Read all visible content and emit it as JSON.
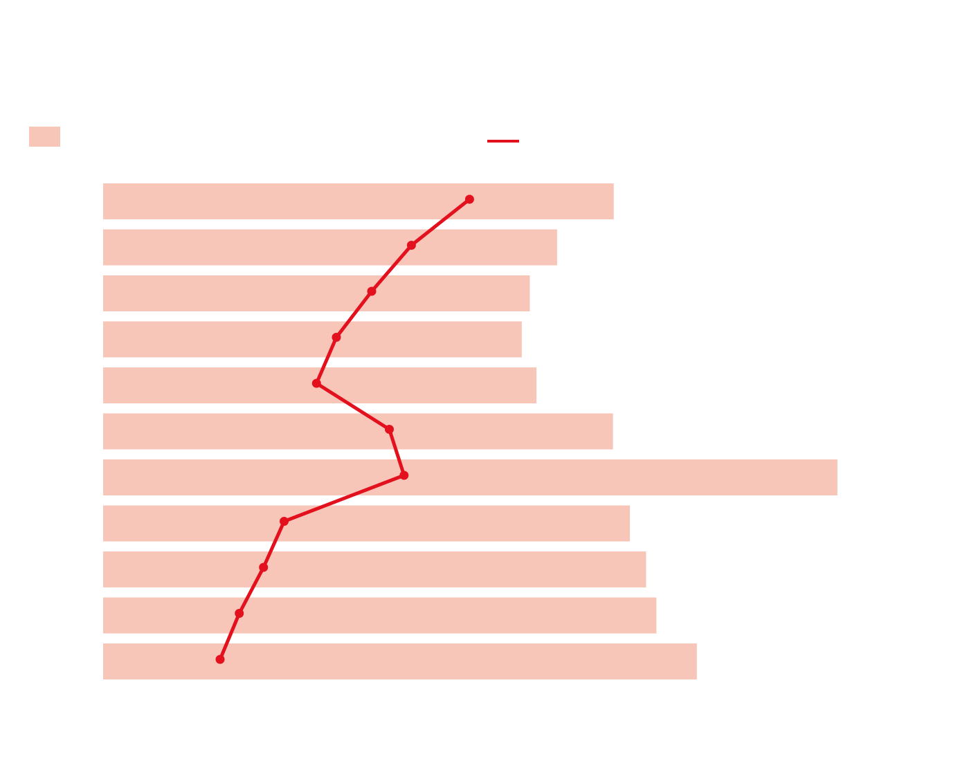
{
  "chart_data": {
    "type": "bar",
    "orientation": "horizontal",
    "categories": [
      "",
      "",
      "",
      "",
      "",
      "",
      "",
      "",
      "",
      "",
      ""
    ],
    "series": [
      {
        "kind": "bar",
        "color": "#f8c5b9",
        "values": [
          0.694,
          0.617,
          0.58,
          0.569,
          0.589,
          0.693,
          0.998,
          0.716,
          0.738,
          0.752,
          0.807
        ]
      },
      {
        "kind": "line",
        "color": "#e3101e",
        "marker": "circle",
        "values": [
          0.498,
          0.419,
          0.365,
          0.317,
          0.29,
          0.389,
          0.409,
          0.246,
          0.218,
          0.185,
          0.159
        ]
      }
    ],
    "xlim": [
      0,
      1
    ],
    "legend": "top",
    "grid": false,
    "title": "",
    "xlabel": "",
    "ylabel": ""
  }
}
